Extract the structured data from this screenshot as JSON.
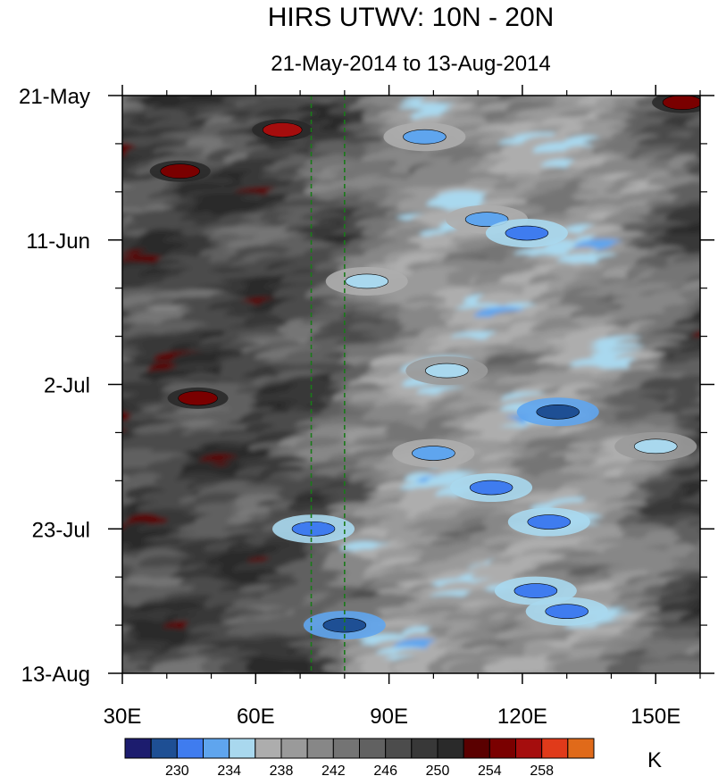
{
  "chart_data": {
    "type": "heatmap",
    "title": "HIRS UTWV: 10N - 20N",
    "subtitle": "21-May-2014 to 13-Aug-2014",
    "x_ticks": [
      {
        "value": 30,
        "label": "30E"
      },
      {
        "value": 60,
        "label": "60E"
      },
      {
        "value": 90,
        "label": "90E"
      },
      {
        "value": 120,
        "label": "120E"
      },
      {
        "value": 150,
        "label": "150E"
      }
    ],
    "x_minor_ticks": [
      40,
      50,
      70,
      80,
      100,
      110,
      130,
      140,
      160
    ],
    "xlim": [
      30,
      160
    ],
    "y_ticks": [
      {
        "value": "2014-05-21",
        "label": "21-May"
      },
      {
        "value": "2014-06-11",
        "label": "11-Jun"
      },
      {
        "value": "2014-07-02",
        "label": "2-Jul"
      },
      {
        "value": "2014-07-23",
        "label": "23-Jul"
      },
      {
        "value": "2014-08-13",
        "label": "13-Aug"
      }
    ],
    "ylim": [
      "2014-05-21",
      "2014-08-13"
    ],
    "y_reversed": true,
    "reference_lines": [
      {
        "x": 72.5,
        "color": "#1a7a1a",
        "style": "dashed"
      },
      {
        "x": 80,
        "color": "#1a7a1a",
        "style": "dashed"
      }
    ],
    "colorbar": {
      "unit": "K",
      "levels": [
        228,
        230,
        232,
        234,
        236,
        238,
        240,
        242,
        244,
        246,
        248,
        250,
        252,
        254,
        256,
        258,
        260
      ],
      "labels": [
        {
          "value": 230,
          "label": "230"
        },
        {
          "value": 234,
          "label": "234"
        },
        {
          "value": 238,
          "label": "238"
        },
        {
          "value": 242,
          "label": "242"
        },
        {
          "value": 246,
          "label": "246"
        },
        {
          "value": 250,
          "label": "250"
        },
        {
          "value": 254,
          "label": "254"
        },
        {
          "value": 258,
          "label": "258"
        }
      ],
      "colors": [
        "#1c1c6e",
        "#1e4f94",
        "#3f7cef",
        "#5fa5ee",
        "#a9d8ee",
        "#adadad",
        "#9a9a9a",
        "#878787",
        "#747474",
        "#616161",
        "#4c4c4c",
        "#383838",
        "#2a2a2a",
        "#5a0000",
        "#7a0000",
        "#a50d0d",
        "#e03a1a",
        "#e06a1a"
      ]
    },
    "features": [
      {
        "lon": 66,
        "date": "2014-05-26",
        "value": 256
      },
      {
        "lon": 43,
        "date": "2014-06-01",
        "value": 255
      },
      {
        "lon": 47,
        "date": "2014-07-04",
        "value": 255
      },
      {
        "lon": 156,
        "date": "2014-05-22",
        "value": 255
      },
      {
        "lon": 98,
        "date": "2014-05-27",
        "value": 233
      },
      {
        "lon": 112,
        "date": "2014-06-08",
        "value": 233
      },
      {
        "lon": 121,
        "date": "2014-06-10",
        "value": 231
      },
      {
        "lon": 128,
        "date": "2014-07-06",
        "value": 229
      },
      {
        "lon": 85,
        "date": "2014-06-17",
        "value": 234
      },
      {
        "lon": 113,
        "date": "2014-07-17",
        "value": 231
      },
      {
        "lon": 126,
        "date": "2014-07-22",
        "value": 231
      },
      {
        "lon": 73,
        "date": "2014-07-23",
        "value": 231
      },
      {
        "lon": 123,
        "date": "2014-08-01",
        "value": 231
      },
      {
        "lon": 130,
        "date": "2014-08-04",
        "value": 231
      },
      {
        "lon": 80,
        "date": "2014-08-06",
        "value": 229
      },
      {
        "lon": 103,
        "date": "2014-06-30",
        "value": 235
      },
      {
        "lon": 100,
        "date": "2014-07-12",
        "value": 233
      },
      {
        "lon": 150,
        "date": "2014-07-11",
        "value": 235
      }
    ]
  }
}
